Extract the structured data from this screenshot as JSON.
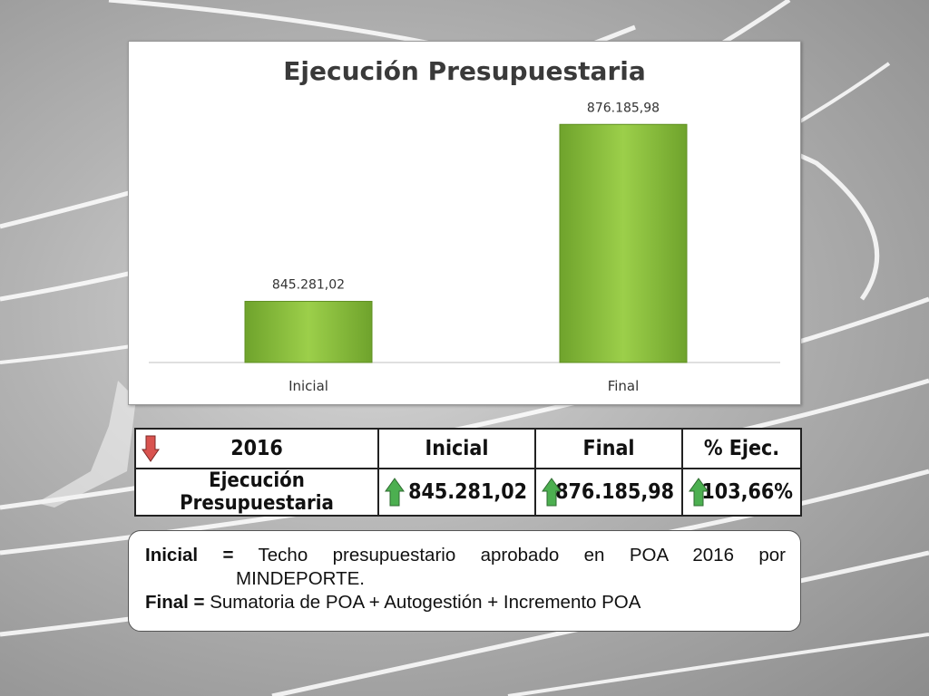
{
  "colors": {
    "bar_fill": "#8dc63f",
    "bar_dark": "#5f8f22",
    "arrow_up": "#4caf50",
    "arrow_down": "#d9534f"
  },
  "chart_data": {
    "type": "bar",
    "title": "Ejecución Presupuestaria",
    "categories": [
      "Inicial",
      "Final"
    ],
    "values": [
      845281.02,
      876185.98
    ],
    "value_labels": [
      "845.281,02",
      "876.185,98"
    ],
    "xlabel": "",
    "ylabel": "",
    "grid": false,
    "legend": "none"
  },
  "table": {
    "headers": [
      "2016",
      "Inicial",
      "Final",
      "% Ejec."
    ],
    "header_icon": "arrow-down-icon",
    "row_label": "Ejecución Presupuestaria",
    "values": [
      "845.281,02",
      "876.185,98",
      "103,66%"
    ],
    "value_icon": "arrow-up-icon"
  },
  "notes": {
    "inicial_term": "Inicial",
    "equals": "=",
    "inicial_def_1": "Techo presupuestario aprobado en POA 2016 por",
    "inicial_def_2": "MINDEPORTE.",
    "final_term": "Final",
    "final_def": "Sumatoria de POA + Autogestión + Incremento POA"
  }
}
